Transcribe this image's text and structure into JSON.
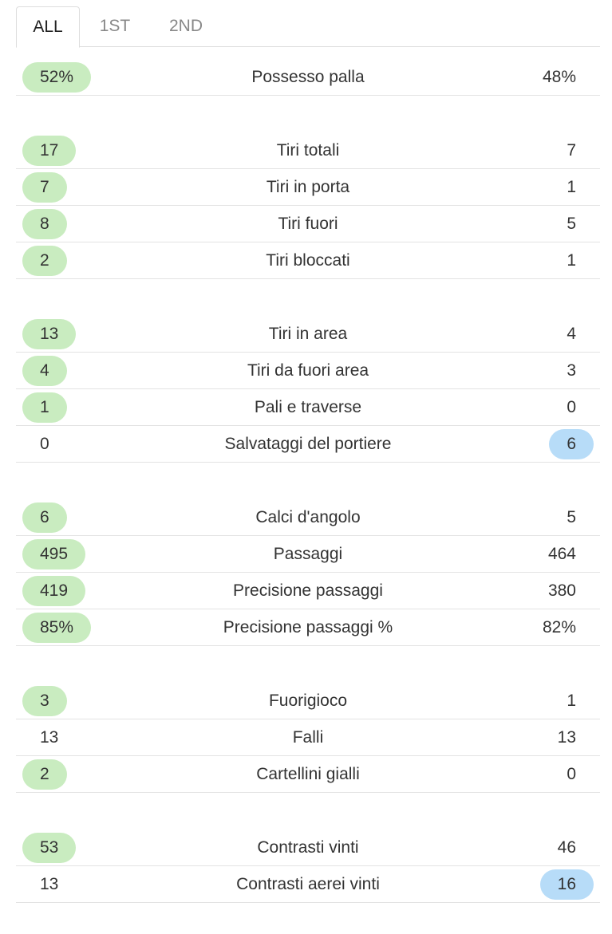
{
  "tabs": [
    "ALL",
    "1ST",
    "2ND"
  ],
  "active_tab": 0,
  "groups": [
    [
      {
        "home": "52%",
        "label": "Possesso palla",
        "away": "48%",
        "highlight": "home"
      }
    ],
    [
      {
        "home": "17",
        "label": "Tiri totali",
        "away": "7",
        "highlight": "home"
      },
      {
        "home": "7",
        "label": "Tiri in porta",
        "away": "1",
        "highlight": "home"
      },
      {
        "home": "8",
        "label": "Tiri fuori",
        "away": "5",
        "highlight": "home"
      },
      {
        "home": "2",
        "label": "Tiri bloccati",
        "away": "1",
        "highlight": "home"
      }
    ],
    [
      {
        "home": "13",
        "label": "Tiri in area",
        "away": "4",
        "highlight": "home"
      },
      {
        "home": "4",
        "label": "Tiri da fuori area",
        "away": "3",
        "highlight": "home"
      },
      {
        "home": "1",
        "label": "Pali e traverse",
        "away": "0",
        "highlight": "home"
      },
      {
        "home": "0",
        "label": "Salvataggi del portiere",
        "away": "6",
        "highlight": "away"
      }
    ],
    [
      {
        "home": "6",
        "label": "Calci d'angolo",
        "away": "5",
        "highlight": "home"
      },
      {
        "home": "495",
        "label": "Passaggi",
        "away": "464",
        "highlight": "home"
      },
      {
        "home": "419",
        "label": "Precisione passaggi",
        "away": "380",
        "highlight": "home"
      },
      {
        "home": "85%",
        "label": "Precisione passaggi %",
        "away": "82%",
        "highlight": "home"
      }
    ],
    [
      {
        "home": "3",
        "label": "Fuorigioco",
        "away": "1",
        "highlight": "home"
      },
      {
        "home": "13",
        "label": "Falli",
        "away": "13"
      },
      {
        "home": "2",
        "label": "Cartellini gialli",
        "away": "0",
        "highlight": "home"
      }
    ],
    [
      {
        "home": "53",
        "label": "Contrasti vinti",
        "away": "46",
        "highlight": "home"
      },
      {
        "home": "13",
        "label": "Contrasti aerei vinti",
        "away": "16",
        "highlight": "away"
      }
    ]
  ],
  "colors": {
    "home": "#c9ecc0",
    "away": "#b7dcf8"
  }
}
